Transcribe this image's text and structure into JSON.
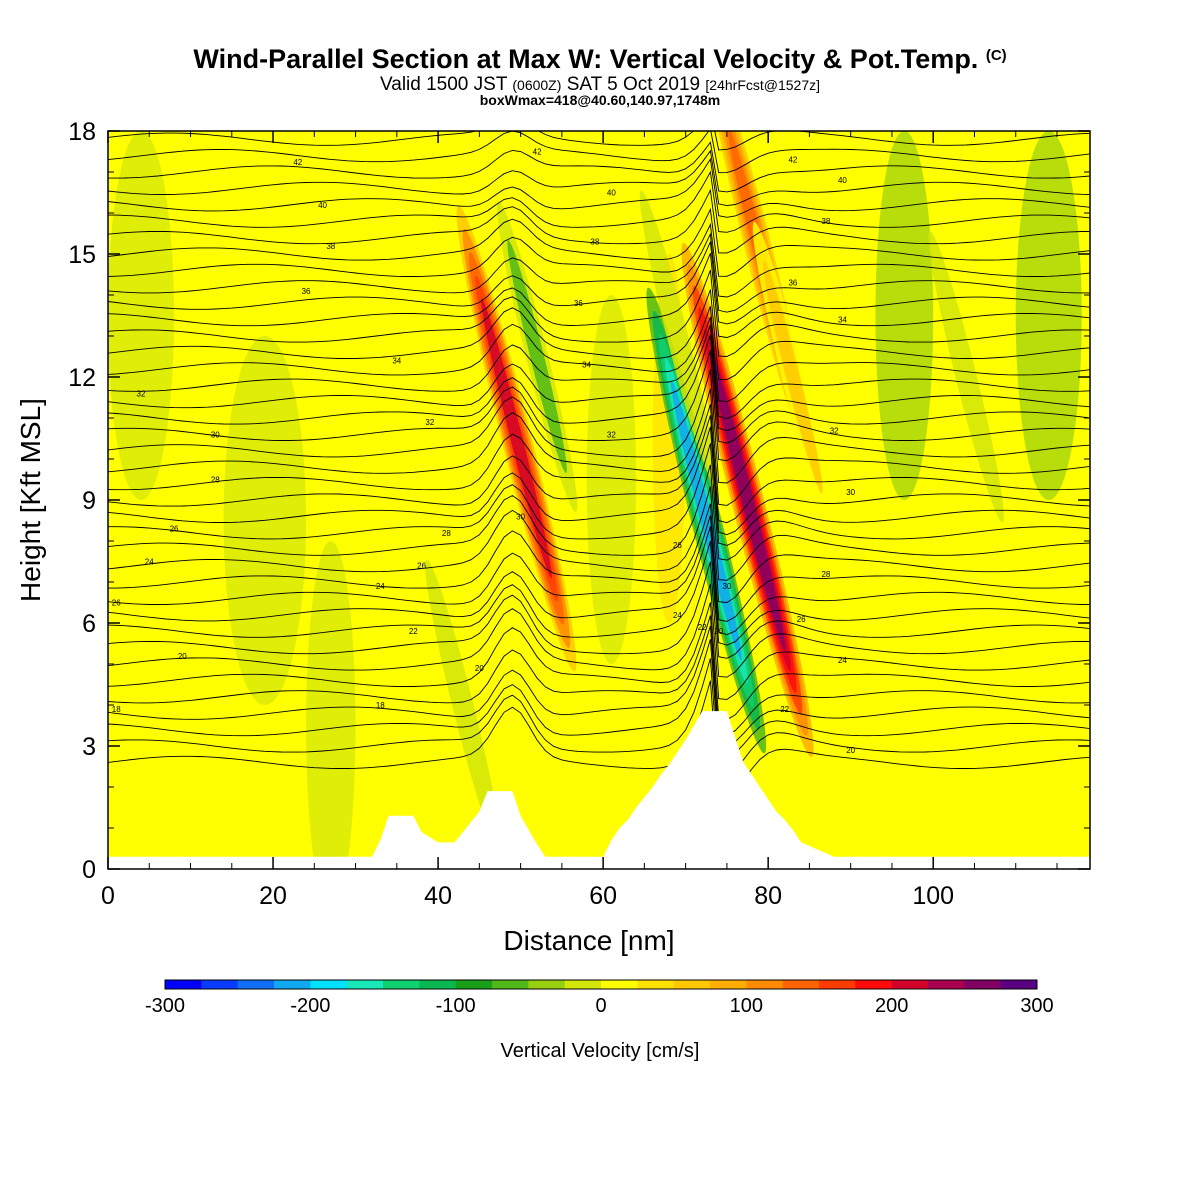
{
  "titles": {
    "main": "Wind-Parallel Section at Max W: Vertical Velocity & Pot.Temp.",
    "copyright": "(C)",
    "valid_prefix": "Valid 1500 JST",
    "valid_zulu": "(0600Z)",
    "valid_date": "SAT 5 Oct 2019",
    "forecast": "[24hrFcst@1527z]",
    "boxmax": "boxWmax=418@40.60,140.97,1748m"
  },
  "chart_data": {
    "type": "heatmap",
    "xlabel": "Distance [nm]",
    "ylabel": "Height [Kft MSL]",
    "xlim": [
      0,
      119
    ],
    "ylim": [
      0,
      18
    ],
    "x_ticks": [
      0,
      20,
      40,
      60,
      80,
      100
    ],
    "y_ticks": [
      0,
      3,
      6,
      9,
      12,
      15,
      18
    ],
    "colorbar": {
      "label": "Vertical Velocity [cm/s]",
      "range": [
        -300,
        300
      ],
      "tick_labels": [
        -300,
        -200,
        -100,
        0,
        100,
        200,
        300
      ],
      "colors": [
        "#0000ff",
        "#0a3cff",
        "#0f6ef5",
        "#10a8f0",
        "#00e0ff",
        "#18e8b8",
        "#10d070",
        "#08b850",
        "#18a018",
        "#50b818",
        "#98d010",
        "#d2e60a",
        "#ffff00",
        "#ffe000",
        "#ffc800",
        "#ffae00",
        "#ff8c00",
        "#ff6400",
        "#ff3c00",
        "#ff0a0a",
        "#d2002a",
        "#aa0050",
        "#820064",
        "#5a0082"
      ]
    },
    "terrain_profile": {
      "x": [
        0,
        32,
        33,
        34,
        37,
        38,
        40,
        42,
        43,
        45,
        46,
        49,
        50,
        52,
        53,
        60,
        61,
        62,
        63,
        64,
        65,
        66,
        67,
        68,
        69,
        70,
        71,
        72,
        75,
        76,
        77,
        78,
        79,
        80,
        81,
        82,
        83,
        84,
        88,
        119
      ],
      "y": [
        0.3,
        0.3,
        0.7,
        1.3,
        1.3,
        0.9,
        0.65,
        0.65,
        0.9,
        1.4,
        1.9,
        1.9,
        1.3,
        0.6,
        0.3,
        0.3,
        0.7,
        1.0,
        1.2,
        1.5,
        1.75,
        2.0,
        2.3,
        2.55,
        2.85,
        3.15,
        3.5,
        3.85,
        3.85,
        3.2,
        2.6,
        2.3,
        2.0,
        1.7,
        1.4,
        1.2,
        0.95,
        0.65,
        0.3,
        0.3
      ]
    },
    "velocity_features": [
      {
        "x": 49.5,
        "y": 10.5,
        "value": 240
      },
      {
        "x": 52,
        "y": 12.5,
        "value": -80
      },
      {
        "x": 72.5,
        "y": 8.5,
        "value": -240
      },
      {
        "x": 77.5,
        "y": 9,
        "value": 290
      },
      {
        "x": 79,
        "y": 15,
        "value": 180
      },
      {
        "x": 83,
        "y": 12,
        "value": 80
      },
      {
        "x": 43,
        "y": 4,
        "value": -60
      },
      {
        "x": 48,
        "y": 2.5,
        "value": 60
      },
      {
        "x": 69,
        "y": 13,
        "value": -60
      },
      {
        "x": 104,
        "y": 12,
        "value": -60
      },
      {
        "x": 87,
        "y": 15,
        "value": 60
      }
    ],
    "pot_temp_labels": [
      {
        "x": 23,
        "y": 17.25,
        "text": "42"
      },
      {
        "x": 26,
        "y": 16.2,
        "text": "40"
      },
      {
        "x": 27,
        "y": 15.2,
        "text": "38"
      },
      {
        "x": 24,
        "y": 14.1,
        "text": "36"
      },
      {
        "x": 35,
        "y": 12.4,
        "text": "34"
      },
      {
        "x": 4,
        "y": 11.6,
        "text": "32"
      },
      {
        "x": 39,
        "y": 10.9,
        "text": "32"
      },
      {
        "x": 13,
        "y": 10.6,
        "text": "30"
      },
      {
        "x": 13,
        "y": 9.5,
        "text": "28"
      },
      {
        "x": 8,
        "y": 8.3,
        "text": "26"
      },
      {
        "x": 41,
        "y": 8.2,
        "text": "28"
      },
      {
        "x": 5,
        "y": 7.5,
        "text": "24"
      },
      {
        "x": 33,
        "y": 6.9,
        "text": "24"
      },
      {
        "x": 38,
        "y": 7.4,
        "text": "26"
      },
      {
        "x": 1,
        "y": 6.5,
        "text": "26"
      },
      {
        "x": 37,
        "y": 5.8,
        "text": "22"
      },
      {
        "x": 9,
        "y": 5.2,
        "text": "20"
      },
      {
        "x": 45,
        "y": 4.9,
        "text": "20"
      },
      {
        "x": 1,
        "y": 3.9,
        "text": "18"
      },
      {
        "x": 33,
        "y": 4.0,
        "text": "18"
      },
      {
        "x": 50,
        "y": 8.6,
        "text": "30"
      },
      {
        "x": 52,
        "y": 17.5,
        "text": "42"
      },
      {
        "x": 61,
        "y": 16.5,
        "text": "40"
      },
      {
        "x": 59,
        "y": 15.3,
        "text": "38"
      },
      {
        "x": 57,
        "y": 13.8,
        "text": "36"
      },
      {
        "x": 58,
        "y": 12.3,
        "text": "34"
      },
      {
        "x": 61,
        "y": 10.6,
        "text": "32"
      },
      {
        "x": 69,
        "y": 7.9,
        "text": "26"
      },
      {
        "x": 69,
        "y": 6.2,
        "text": "24"
      },
      {
        "x": 72,
        "y": 5.9,
        "text": "22"
      },
      {
        "x": 74,
        "y": 5.8,
        "text": "20"
      },
      {
        "x": 75,
        "y": 6.9,
        "text": "30"
      },
      {
        "x": 83,
        "y": 17.3,
        "text": "42"
      },
      {
        "x": 89,
        "y": 16.8,
        "text": "40"
      },
      {
        "x": 87,
        "y": 15.8,
        "text": "38"
      },
      {
        "x": 83,
        "y": 14.3,
        "text": "36"
      },
      {
        "x": 89,
        "y": 13.4,
        "text": "34"
      },
      {
        "x": 88,
        "y": 10.7,
        "text": "32"
      },
      {
        "x": 90,
        "y": 9.2,
        "text": "30"
      },
      {
        "x": 87,
        "y": 7.2,
        "text": "28"
      },
      {
        "x": 84,
        "y": 6.1,
        "text": "26"
      },
      {
        "x": 89,
        "y": 5.1,
        "text": "24"
      },
      {
        "x": 82,
        "y": 3.9,
        "text": "22"
      },
      {
        "x": 90,
        "y": 2.9,
        "text": "20"
      }
    ]
  }
}
